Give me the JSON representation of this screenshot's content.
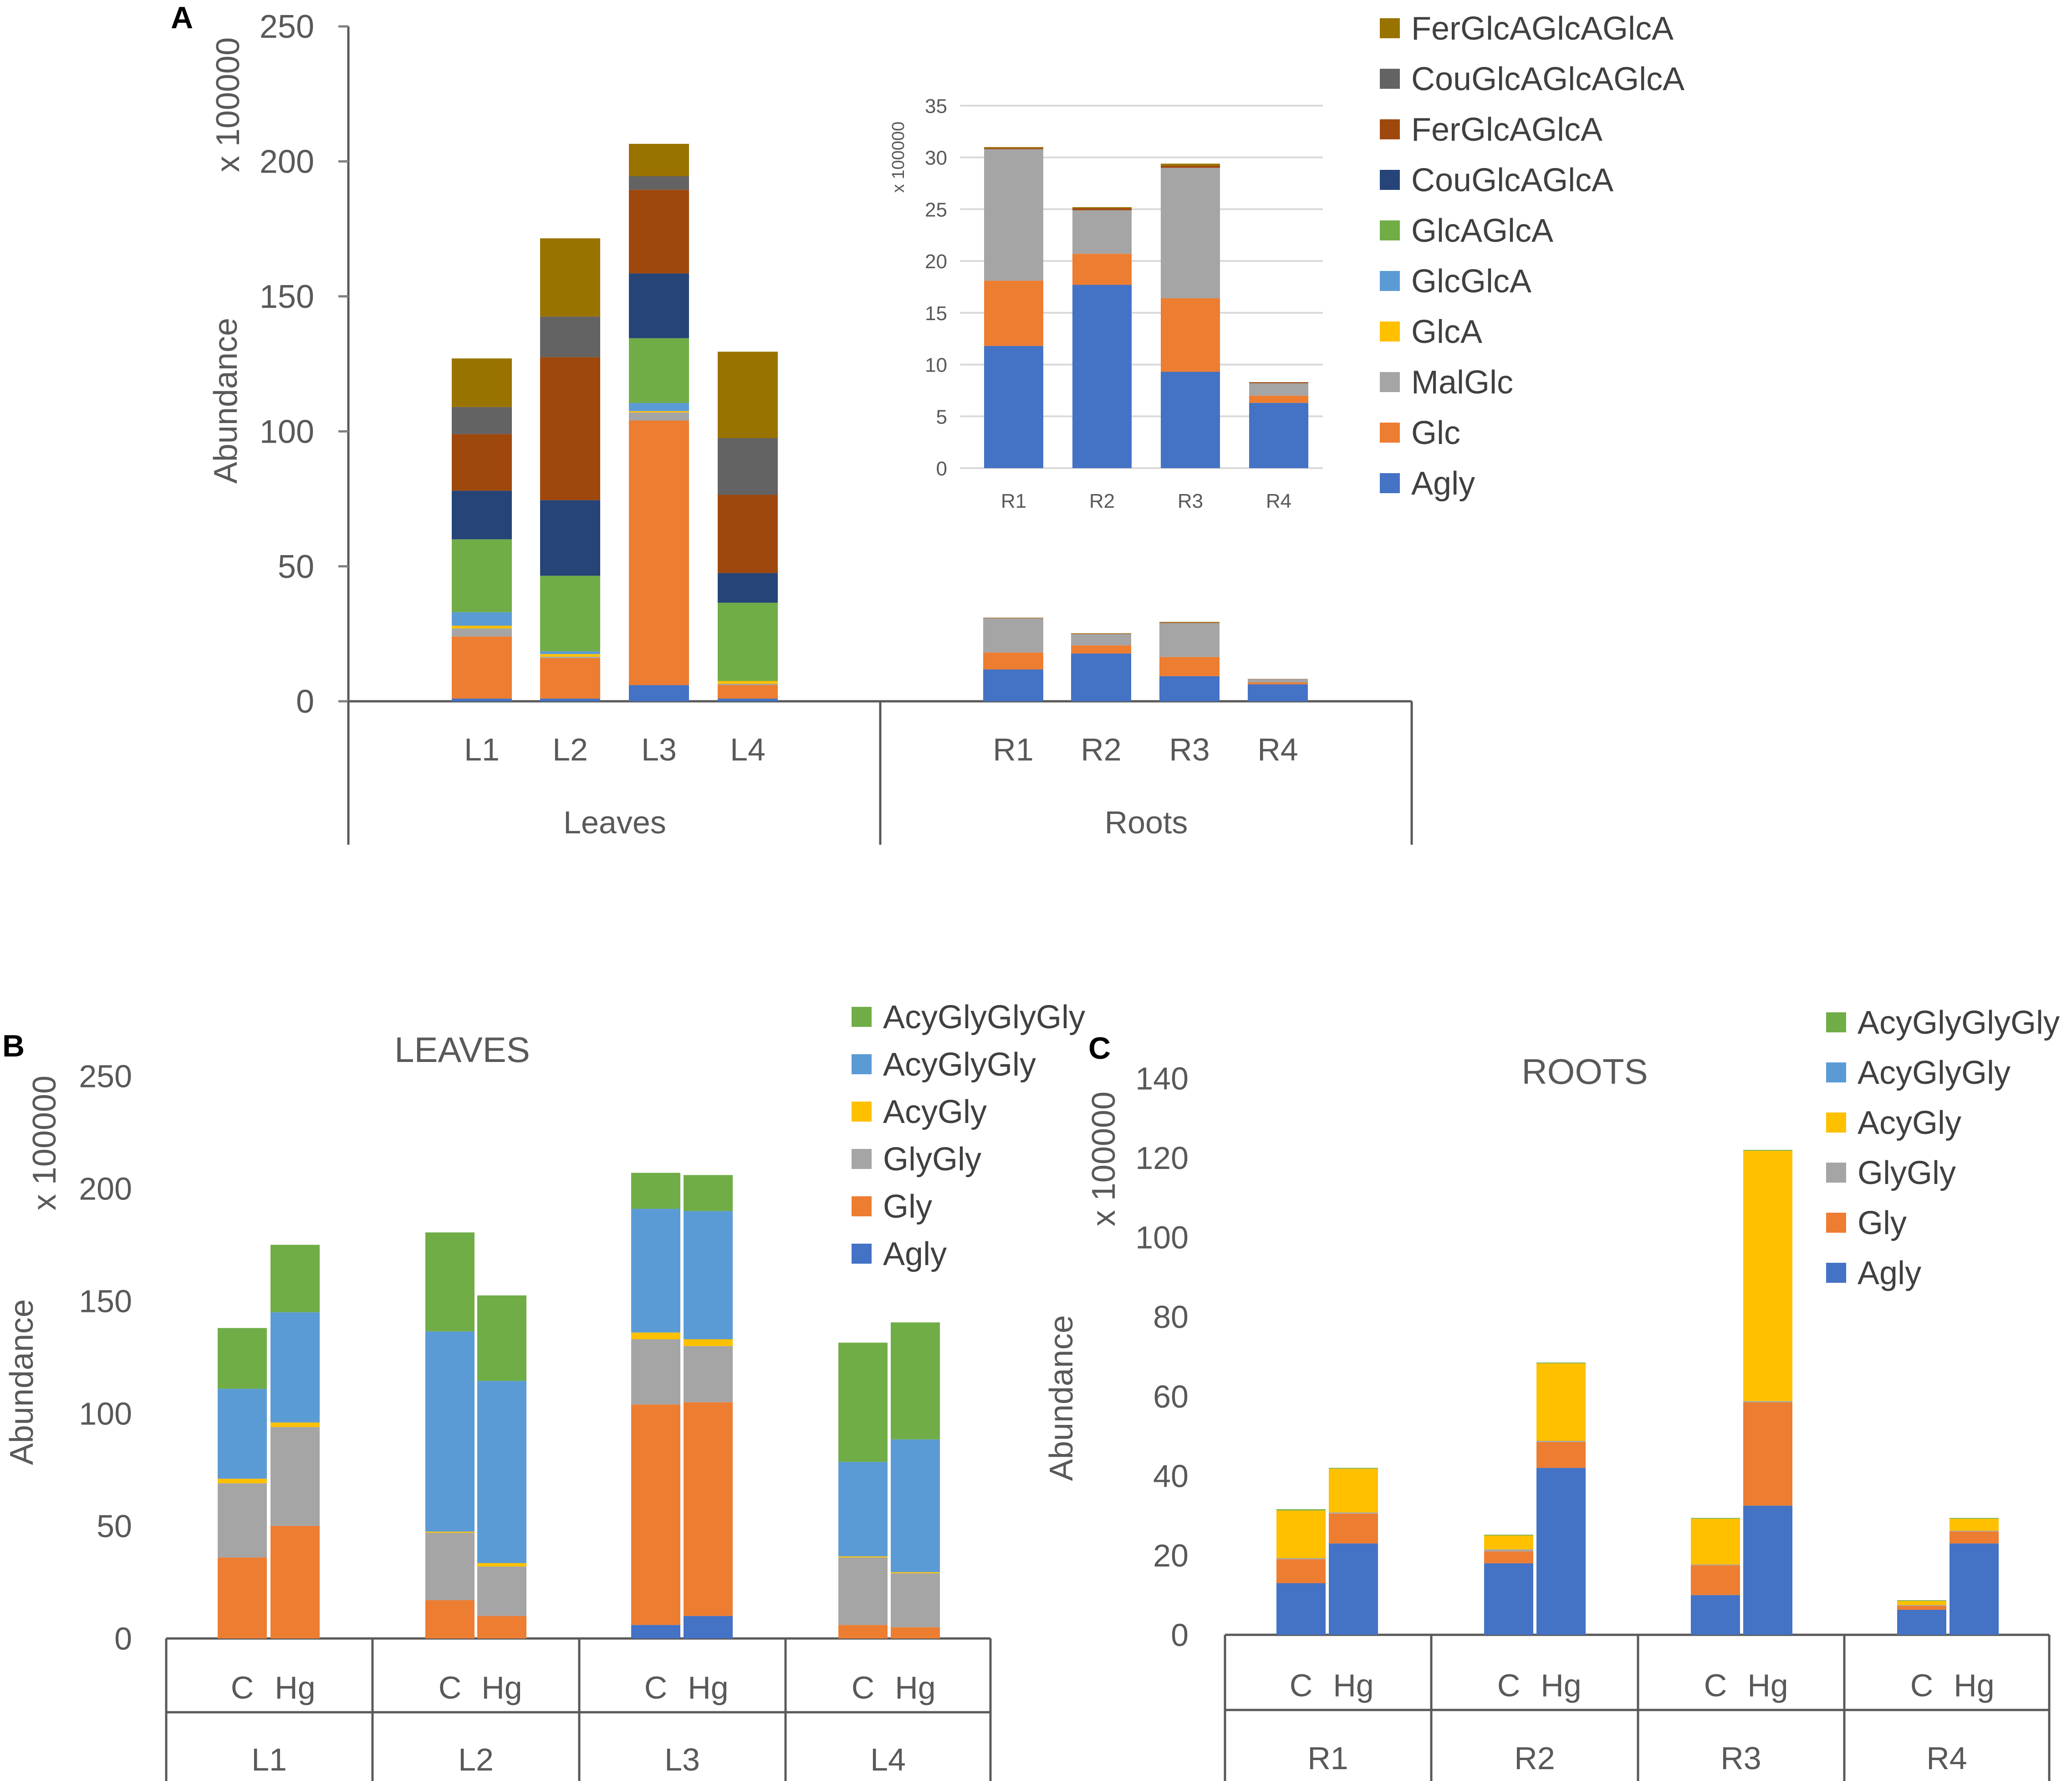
{
  "chart_data": [
    {
      "panel": "A",
      "type": "bar",
      "stacked": true,
      "title": "",
      "ylabel": "Abundance",
      "yunit": "x 100000",
      "ylim": [
        0,
        250
      ],
      "yticks": [
        0,
        50,
        100,
        150,
        200,
        250
      ],
      "groups": [
        "Leaves",
        "Roots"
      ],
      "categories": [
        "L1",
        "L2",
        "L3",
        "L4",
        "R1",
        "R2",
        "R3",
        "R4"
      ],
      "series": [
        {
          "name": "Agly",
          "color": "#4472C4",
          "values": [
            1,
            1,
            6,
            1,
            11.8,
            17.7,
            9.3,
            6.3
          ]
        },
        {
          "name": "Glc",
          "color": "#ED7D31",
          "values": [
            23,
            15,
            98,
            5,
            6.3,
            3,
            7.1,
            0.7
          ]
        },
        {
          "name": "MalGlc",
          "color": "#A5A5A5",
          "values": [
            3,
            0.5,
            3,
            0.5,
            12.7,
            4.2,
            12.6,
            1.2
          ]
        },
        {
          "name": "GlcA",
          "color": "#FFC000",
          "values": [
            1,
            1,
            0.5,
            1,
            0,
            0,
            0,
            0
          ]
        },
        {
          "name": "GlcGlcA",
          "color": "#5B9BD5",
          "values": [
            5,
            1,
            3,
            0,
            0,
            0,
            0,
            0
          ]
        },
        {
          "name": "GlcAGlcA",
          "color": "#70AD47",
          "values": [
            27,
            28,
            24,
            29,
            0,
            0,
            0,
            0
          ]
        },
        {
          "name": "CouGlcAGlcA",
          "color": "#264478",
          "values": [
            18,
            28,
            24,
            11,
            0,
            0,
            0,
            0
          ]
        },
        {
          "name": "FerGlcAGlcA",
          "color": "#9E480E",
          "values": [
            21,
            53,
            31,
            29,
            0.1,
            0.2,
            0.2,
            0.1
          ]
        },
        {
          "name": "CouGlcAGlcAGlcA",
          "color": "#636363",
          "values": [
            10,
            15,
            5,
            21,
            0,
            0,
            0,
            0
          ]
        },
        {
          "name": "FerGlcAGlcAGlcA",
          "color": "#997300",
          "values": [
            18,
            29,
            12,
            32,
            0.1,
            0.1,
            0.2,
            0
          ]
        }
      ],
      "inset": {
        "yunit": "x 100000",
        "ylim": [
          0,
          35
        ],
        "yticks": [
          0,
          5,
          10,
          15,
          20,
          25,
          30,
          35
        ],
        "categories": [
          "R1",
          "R2",
          "R3",
          "R4"
        ]
      }
    },
    {
      "panel": "B",
      "type": "bar",
      "stacked": true,
      "title": "LEAVES",
      "ylabel": "Abundance",
      "yunit": "x 100000",
      "ylim": [
        0,
        250
      ],
      "yticks": [
        0,
        50,
        100,
        150,
        200,
        250
      ],
      "groups": [
        "L1",
        "L2",
        "L3",
        "L4"
      ],
      "categories": [
        "C",
        "Hg",
        "C",
        "Hg",
        "C",
        "Hg",
        "C",
        "Hg"
      ],
      "series": [
        {
          "name": "Agly",
          "color": "#4472C4",
          "values": [
            0,
            0,
            0,
            0,
            6,
            10,
            0,
            0
          ]
        },
        {
          "name": "Gly",
          "color": "#ED7D31",
          "values": [
            36,
            50,
            17,
            10,
            98,
            95,
            6,
            5
          ]
        },
        {
          "name": "GlyGly",
          "color": "#A5A5A5",
          "values": [
            33,
            44,
            30,
            22,
            29,
            25,
            30,
            24
          ]
        },
        {
          "name": "AcyGly",
          "color": "#FFC000",
          "values": [
            2,
            2,
            0.5,
            1.5,
            3,
            3,
            0.5,
            0.5
          ]
        },
        {
          "name": "AcyGlyGly",
          "color": "#5B9BD5",
          "values": [
            40,
            49,
            89,
            81,
            55,
            57,
            42,
            59
          ]
        },
        {
          "name": "AcyGlyGlyGly",
          "color": "#70AD47",
          "values": [
            27,
            30,
            44,
            38,
            16,
            16,
            53,
            52
          ]
        }
      ]
    },
    {
      "panel": "C",
      "type": "bar",
      "stacked": true,
      "title": "ROOTS",
      "ylabel": "Abundance",
      "yunit": "x 100000",
      "ylim": [
        0,
        140
      ],
      "yticks": [
        0,
        20,
        40,
        60,
        80,
        100,
        120,
        140
      ],
      "groups": [
        "R1",
        "R2",
        "R3",
        "R4"
      ],
      "categories": [
        "C",
        "Hg",
        "C",
        "Hg",
        "C",
        "Hg",
        "C",
        "Hg"
      ],
      "series": [
        {
          "name": "Agly",
          "color": "#4472C4",
          "values": [
            13,
            23,
            18,
            42,
            10,
            32.5,
            6.3,
            23
          ]
        },
        {
          "name": "Gly",
          "color": "#ED7D31",
          "values": [
            6,
            7.5,
            3,
            6.5,
            7.5,
            26,
            1,
            3
          ]
        },
        {
          "name": "GlyGly",
          "color": "#A5A5A5",
          "values": [
            0.3,
            0.3,
            0.5,
            0.3,
            0.2,
            0.3,
            0.2,
            0.2
          ]
        },
        {
          "name": "AcyGly",
          "color": "#FFC000",
          "values": [
            12,
            11,
            3.5,
            19.5,
            11.5,
            63,
            1,
            3
          ]
        },
        {
          "name": "AcyGlyGly",
          "color": "#5B9BD5",
          "values": [
            0,
            0,
            0,
            0,
            0,
            0,
            0,
            0
          ]
        },
        {
          "name": "AcyGlyGlyGly",
          "color": "#70AD47",
          "values": [
            0.3,
            0.2,
            0.2,
            0.2,
            0.2,
            0.2,
            0.2,
            0.2
          ]
        }
      ]
    }
  ]
}
